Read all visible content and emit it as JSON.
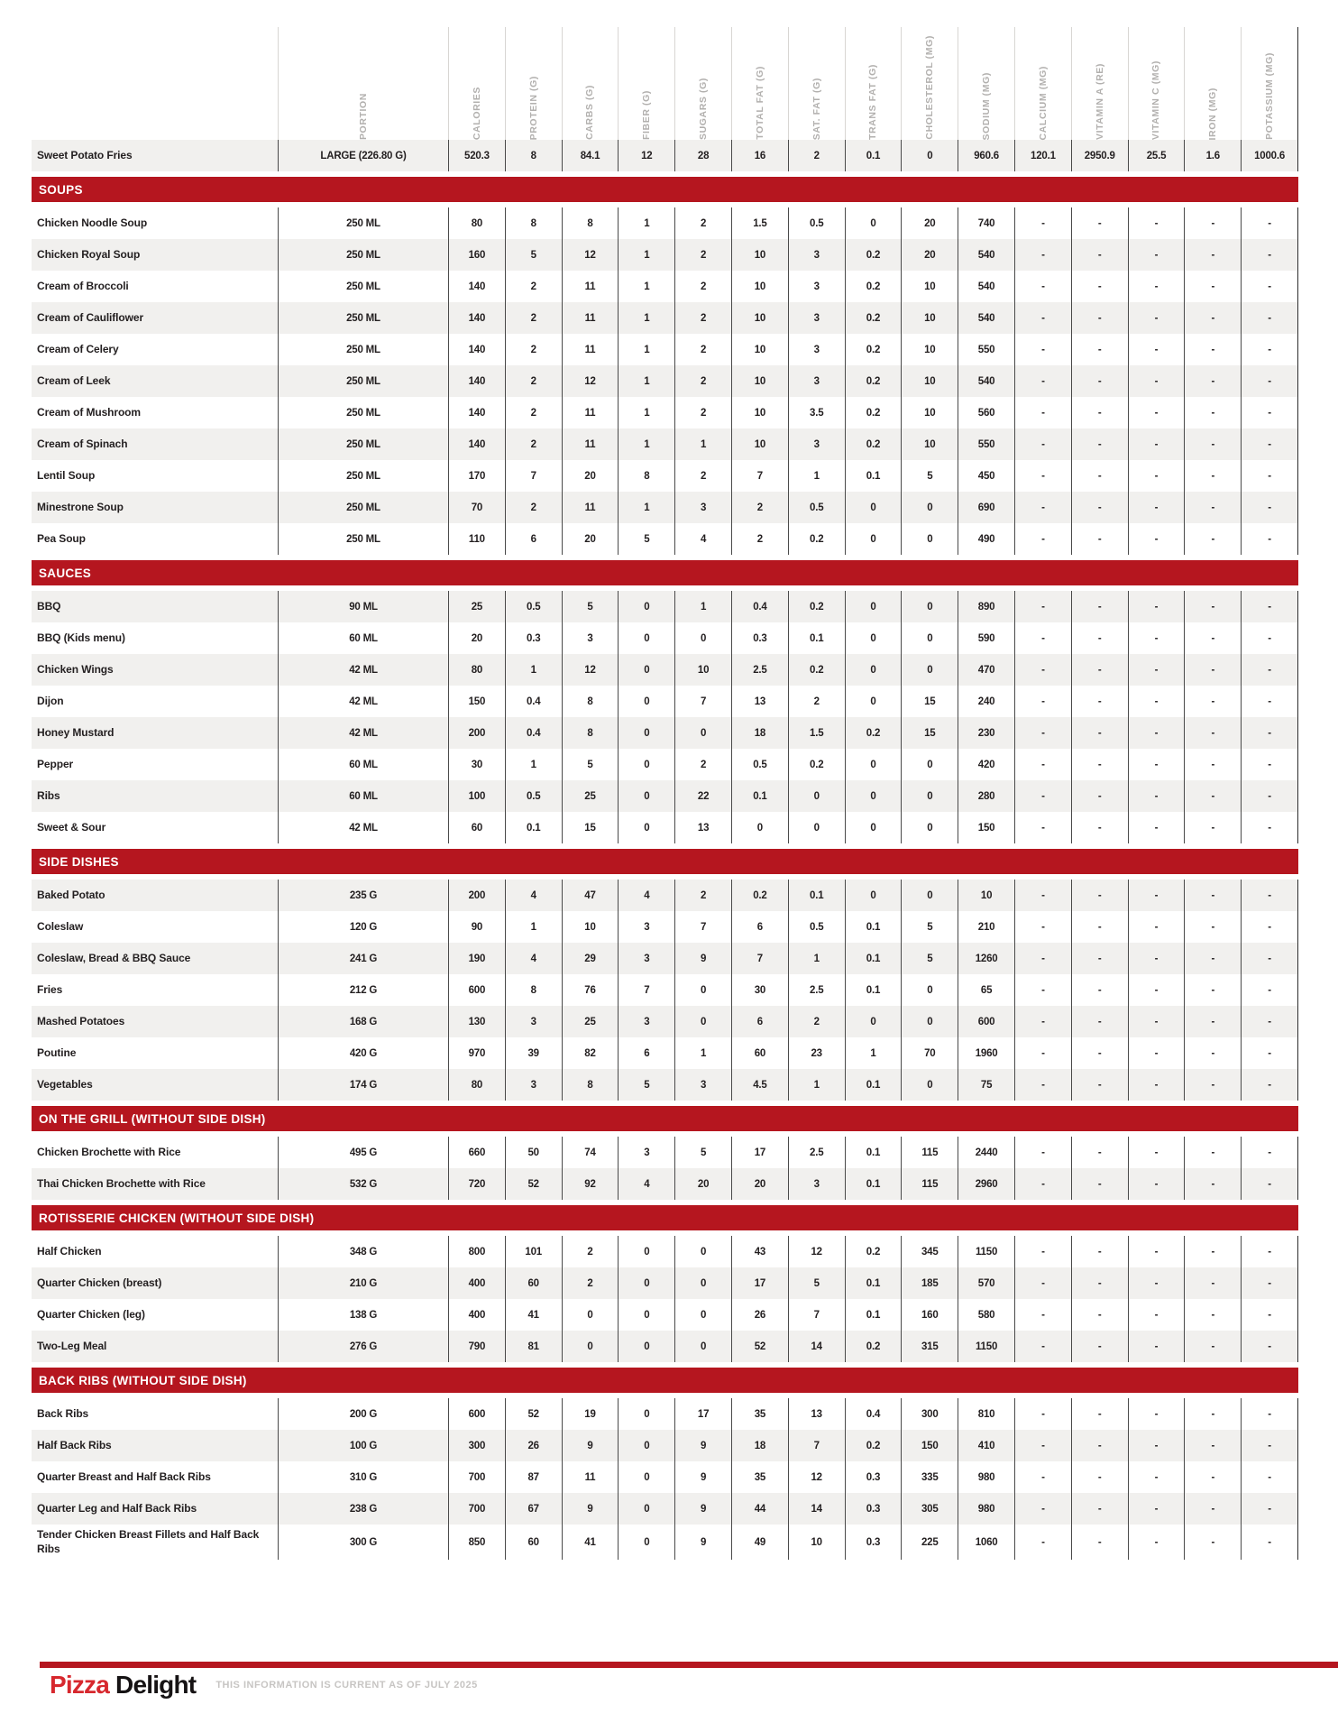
{
  "colors": {
    "accent_red": "#B5161F",
    "stripe_gray": "#F1F0EE",
    "text_dark": "#231F20",
    "header_label_gray": "#B2B0AE",
    "logo_red": "#D7282E",
    "logo_black": "#161314",
    "disclaimer_gray": "#C7C5C3"
  },
  "table": {
    "columns": [
      "PORTION",
      "CALORIES",
      "PROTEIN (G)",
      "CARBS (G)",
      "FIBER (G)",
      "SUGARS (G)",
      "TOTAL FAT (G)",
      "SAT. FAT (G)",
      "TRANS FAT (G)",
      "CHOLESTEROL (MG)",
      "SODIUM (MG)",
      "CALCIUM (MG)",
      "VITAMIN A (RE)",
      "VITAMIN C (MG)",
      "IRON (MG)",
      "POTASSIUM (MG)"
    ],
    "sections": [
      {
        "title": "",
        "rows": [
          {
            "name": "Sweet Potato Fries",
            "values": [
              "LARGE (226.80 G)",
              "520.3",
              "8",
              "84.1",
              "12",
              "28",
              "16",
              "2",
              "0.1",
              "0",
              "960.6",
              "120.1",
              "2950.9",
              "25.5",
              "1.6",
              "1000.6"
            ]
          }
        ]
      },
      {
        "title": "SOUPS",
        "rows": [
          {
            "name": "Chicken Noodle Soup",
            "values": [
              "250 ML",
              "80",
              "8",
              "8",
              "1",
              "2",
              "1.5",
              "0.5",
              "0",
              "20",
              "740",
              "-",
              "-",
              "-",
              "-",
              "-"
            ]
          },
          {
            "name": "Chicken Royal Soup",
            "values": [
              "250 ML",
              "160",
              "5",
              "12",
              "1",
              "2",
              "10",
              "3",
              "0.2",
              "20",
              "540",
              "-",
              "-",
              "-",
              "-",
              "-"
            ]
          },
          {
            "name": "Cream of Broccoli",
            "values": [
              "250 ML",
              "140",
              "2",
              "11",
              "1",
              "2",
              "10",
              "3",
              "0.2",
              "10",
              "540",
              "-",
              "-",
              "-",
              "-",
              "-"
            ]
          },
          {
            "name": "Cream of Cauliflower",
            "values": [
              "250 ML",
              "140",
              "2",
              "11",
              "1",
              "2",
              "10",
              "3",
              "0.2",
              "10",
              "540",
              "-",
              "-",
              "-",
              "-",
              "-"
            ]
          },
          {
            "name": "Cream of Celery",
            "values": [
              "250 ML",
              "140",
              "2",
              "11",
              "1",
              "2",
              "10",
              "3",
              "0.2",
              "10",
              "550",
              "-",
              "-",
              "-",
              "-",
              "-"
            ]
          },
          {
            "name": "Cream of Leek",
            "values": [
              "250 ML",
              "140",
              "2",
              "12",
              "1",
              "2",
              "10",
              "3",
              "0.2",
              "10",
              "540",
              "-",
              "-",
              "-",
              "-",
              "-"
            ]
          },
          {
            "name": "Cream of Mushroom",
            "values": [
              "250 ML",
              "140",
              "2",
              "11",
              "1",
              "2",
              "10",
              "3.5",
              "0.2",
              "10",
              "560",
              "-",
              "-",
              "-",
              "-",
              "-"
            ]
          },
          {
            "name": "Cream of Spinach",
            "values": [
              "250 ML",
              "140",
              "2",
              "11",
              "1",
              "1",
              "10",
              "3",
              "0.2",
              "10",
              "550",
              "-",
              "-",
              "-",
              "-",
              "-"
            ]
          },
          {
            "name": "Lentil Soup",
            "values": [
              "250 ML",
              "170",
              "7",
              "20",
              "8",
              "2",
              "7",
              "1",
              "0.1",
              "5",
              "450",
              "-",
              "-",
              "-",
              "-",
              "-"
            ]
          },
          {
            "name": "Minestrone Soup",
            "values": [
              "250 ML",
              "70",
              "2",
              "11",
              "1",
              "3",
              "2",
              "0.5",
              "0",
              "0",
              "690",
              "-",
              "-",
              "-",
              "-",
              "-"
            ]
          },
          {
            "name": "Pea Soup",
            "values": [
              "250 ML",
              "110",
              "6",
              "20",
              "5",
              "4",
              "2",
              "0.2",
              "0",
              "0",
              "490",
              "-",
              "-",
              "-",
              "-",
              "-"
            ]
          }
        ]
      },
      {
        "title": "SAUCES",
        "rows": [
          {
            "name": "BBQ",
            "values": [
              "90 ML",
              "25",
              "0.5",
              "5",
              "0",
              "1",
              "0.4",
              "0.2",
              "0",
              "0",
              "890",
              "-",
              "-",
              "-",
              "-",
              "-"
            ]
          },
          {
            "name": "BBQ (Kids menu)",
            "values": [
              "60 ML",
              "20",
              "0.3",
              "3",
              "0",
              "0",
              "0.3",
              "0.1",
              "0",
              "0",
              "590",
              "-",
              "-",
              "-",
              "-",
              "-"
            ]
          },
          {
            "name": "Chicken Wings",
            "values": [
              "42 ML",
              "80",
              "1",
              "12",
              "0",
              "10",
              "2.5",
              "0.2",
              "0",
              "0",
              "470",
              "-",
              "-",
              "-",
              "-",
              "-"
            ]
          },
          {
            "name": "Dijon",
            "values": [
              "42 ML",
              "150",
              "0.4",
              "8",
              "0",
              "7",
              "13",
              "2",
              "0",
              "15",
              "240",
              "-",
              "-",
              "-",
              "-",
              "-"
            ]
          },
          {
            "name": "Honey Mustard",
            "values": [
              "42 ML",
              "200",
              "0.4",
              "8",
              "0",
              "0",
              "18",
              "1.5",
              "0.2",
              "15",
              "230",
              "-",
              "-",
              "-",
              "-",
              "-"
            ]
          },
          {
            "name": "Pepper",
            "values": [
              "60 ML",
              "30",
              "1",
              "5",
              "0",
              "2",
              "0.5",
              "0.2",
              "0",
              "0",
              "420",
              "-",
              "-",
              "-",
              "-",
              "-"
            ]
          },
          {
            "name": "Ribs",
            "values": [
              "60 ML",
              "100",
              "0.5",
              "25",
              "0",
              "22",
              "0.1",
              "0",
              "0",
              "0",
              "280",
              "-",
              "-",
              "-",
              "-",
              "-"
            ]
          },
          {
            "name": "Sweet & Sour",
            "values": [
              "42 ML",
              "60",
              "0.1",
              "15",
              "0",
              "13",
              "0",
              "0",
              "0",
              "0",
              "150",
              "-",
              "-",
              "-",
              "-",
              "-"
            ]
          }
        ]
      },
      {
        "title": "SIDE DISHES",
        "rows": [
          {
            "name": "Baked Potato",
            "values": [
              "235 G",
              "200",
              "4",
              "47",
              "4",
              "2",
              "0.2",
              "0.1",
              "0",
              "0",
              "10",
              "-",
              "-",
              "-",
              "-",
              "-"
            ]
          },
          {
            "name": "Coleslaw",
            "values": [
              "120 G",
              "90",
              "1",
              "10",
              "3",
              "7",
              "6",
              "0.5",
              "0.1",
              "5",
              "210",
              "-",
              "-",
              "-",
              "-",
              "-"
            ]
          },
          {
            "name": "Coleslaw, Bread & BBQ Sauce",
            "values": [
              "241 G",
              "190",
              "4",
              "29",
              "3",
              "9",
              "7",
              "1",
              "0.1",
              "5",
              "1260",
              "-",
              "-",
              "-",
              "-",
              "-"
            ]
          },
          {
            "name": "Fries",
            "values": [
              "212 G",
              "600",
              "8",
              "76",
              "7",
              "0",
              "30",
              "2.5",
              "0.1",
              "0",
              "65",
              "-",
              "-",
              "-",
              "-",
              "-"
            ]
          },
          {
            "name": "Mashed Potatoes",
            "values": [
              "168 G",
              "130",
              "3",
              "25",
              "3",
              "0",
              "6",
              "2",
              "0",
              "0",
              "600",
              "-",
              "-",
              "-",
              "-",
              "-"
            ]
          },
          {
            "name": "Poutine",
            "values": [
              "420 G",
              "970",
              "39",
              "82",
              "6",
              "1",
              "60",
              "23",
              "1",
              "70",
              "1960",
              "-",
              "-",
              "-",
              "-",
              "-"
            ]
          },
          {
            "name": "Vegetables",
            "values": [
              "174 G",
              "80",
              "3",
              "8",
              "5",
              "3",
              "4.5",
              "1",
              "0.1",
              "0",
              "75",
              "-",
              "-",
              "-",
              "-",
              "-"
            ]
          }
        ]
      },
      {
        "title": "ON THE GRILL (WITHOUT SIDE DISH)",
        "rows": [
          {
            "name": "Chicken Brochette with Rice",
            "values": [
              "495 G",
              "660",
              "50",
              "74",
              "3",
              "5",
              "17",
              "2.5",
              "0.1",
              "115",
              "2440",
              "-",
              "-",
              "-",
              "-",
              "-"
            ]
          },
          {
            "name": "Thai Chicken Brochette with Rice",
            "values": [
              "532 G",
              "720",
              "52",
              "92",
              "4",
              "20",
              "20",
              "3",
              "0.1",
              "115",
              "2960",
              "-",
              "-",
              "-",
              "-",
              "-"
            ]
          }
        ]
      },
      {
        "title": "ROTISSERIE CHICKEN (WITHOUT SIDE DISH)",
        "rows": [
          {
            "name": "Half Chicken",
            "values": [
              "348 G",
              "800",
              "101",
              "2",
              "0",
              "0",
              "43",
              "12",
              "0.2",
              "345",
              "1150",
              "-",
              "-",
              "-",
              "-",
              "-"
            ]
          },
          {
            "name": "Quarter Chicken (breast)",
            "values": [
              "210 G",
              "400",
              "60",
              "2",
              "0",
              "0",
              "17",
              "5",
              "0.1",
              "185",
              "570",
              "-",
              "-",
              "-",
              "-",
              "-"
            ]
          },
          {
            "name": "Quarter Chicken (leg)",
            "values": [
              "138 G",
              "400",
              "41",
              "0",
              "0",
              "0",
              "26",
              "7",
              "0.1",
              "160",
              "580",
              "-",
              "-",
              "-",
              "-",
              "-"
            ]
          },
          {
            "name": "Two-Leg Meal",
            "values": [
              "276 G",
              "790",
              "81",
              "0",
              "0",
              "0",
              "52",
              "14",
              "0.2",
              "315",
              "1150",
              "-",
              "-",
              "-",
              "-",
              "-"
            ]
          }
        ]
      },
      {
        "title": "BACK RIBS (WITHOUT SIDE DISH)",
        "rows": [
          {
            "name": "Back Ribs",
            "values": [
              "200 G",
              "600",
              "52",
              "19",
              "0",
              "17",
              "35",
              "13",
              "0.4",
              "300",
              "810",
              "-",
              "-",
              "-",
              "-",
              "-"
            ]
          },
          {
            "name": "Half Back Ribs",
            "values": [
              "100 G",
              "300",
              "26",
              "9",
              "0",
              "9",
              "18",
              "7",
              "0.2",
              "150",
              "410",
              "-",
              "-",
              "-",
              "-",
              "-"
            ]
          },
          {
            "name": "Quarter Breast and Half Back Ribs",
            "values": [
              "310 G",
              "700",
              "87",
              "11",
              "0",
              "9",
              "35",
              "12",
              "0.3",
              "335",
              "980",
              "-",
              "-",
              "-",
              "-",
              "-"
            ]
          },
          {
            "name": "Quarter Leg and Half Back Ribs",
            "values": [
              "238 G",
              "700",
              "67",
              "9",
              "0",
              "9",
              "44",
              "14",
              "0.3",
              "305",
              "980",
              "-",
              "-",
              "-",
              "-",
              "-"
            ]
          },
          {
            "name": "Tender Chicken Breast Fillets and Half Back Ribs",
            "values": [
              "300 G",
              "850",
              "60",
              "41",
              "0",
              "9",
              "49",
              "10",
              "0.3",
              "225",
              "1060",
              "-",
              "-",
              "-",
              "-",
              "-"
            ]
          }
        ]
      }
    ]
  },
  "footer": {
    "brand_primary": "Pizza",
    "brand_secondary": "Delight",
    "disclaimer": "THIS INFORMATION IS CURRENT AS OF JULY 2025"
  }
}
